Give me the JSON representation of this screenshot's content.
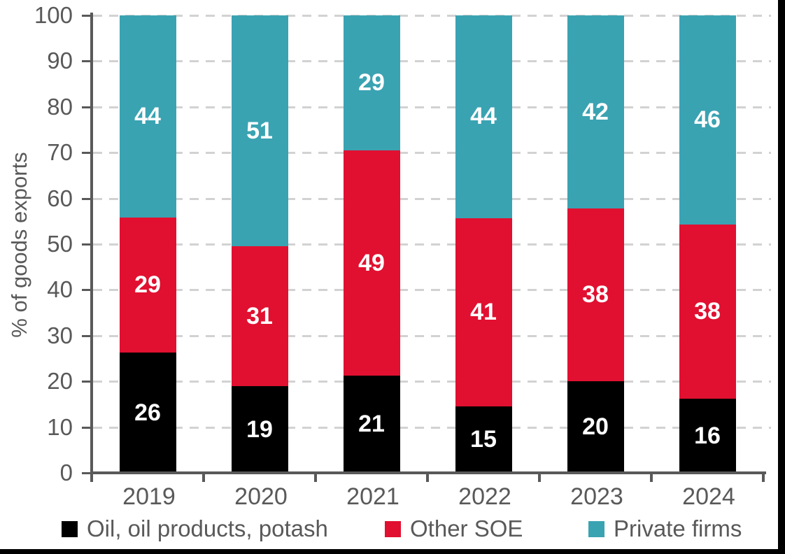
{
  "chart_data": {
    "type": "bar",
    "stacked": true,
    "title": "",
    "xlabel": "",
    "ylabel": "% of goods exports",
    "ylim": [
      0,
      100
    ],
    "yticks": [
      0,
      10,
      20,
      30,
      40,
      50,
      60,
      70,
      80,
      90,
      100
    ],
    "grid": "horizontal dashed",
    "legend_position": "bottom",
    "categories": [
      "2019",
      "2020",
      "2021",
      "2022",
      "2023",
      "2024"
    ],
    "series": [
      {
        "name": "Oil, oil products, potash",
        "color": "#000000",
        "label_color": "#FFFFFF",
        "values": [
          26,
          19,
          21,
          15,
          20,
          16
        ],
        "plot_values": [
          26.3,
          18.9,
          21.2,
          14.5,
          20.0,
          16.2
        ]
      },
      {
        "name": "Other SOE",
        "color": "#E11030",
        "label_color": "#FFFFFF",
        "values": [
          29,
          31,
          49,
          41,
          38,
          38
        ],
        "plot_values": [
          29.5,
          30.6,
          49.3,
          41.2,
          37.8,
          38.1
        ]
      },
      {
        "name": "Private firms",
        "color": "#3AA3B2",
        "label_color": "#FFFFFF",
        "values": [
          44,
          51,
          29,
          44,
          42,
          46
        ],
        "plot_values": [
          44.2,
          50.5,
          29.5,
          44.3,
          42.2,
          45.7
        ]
      }
    ]
  },
  "colors": {
    "background": "#FFFFFF",
    "axis": "#595959",
    "tick_label": "#595959",
    "gridline": "#D2D2D2",
    "legend_text": "#595959",
    "frame": "#000000"
  }
}
